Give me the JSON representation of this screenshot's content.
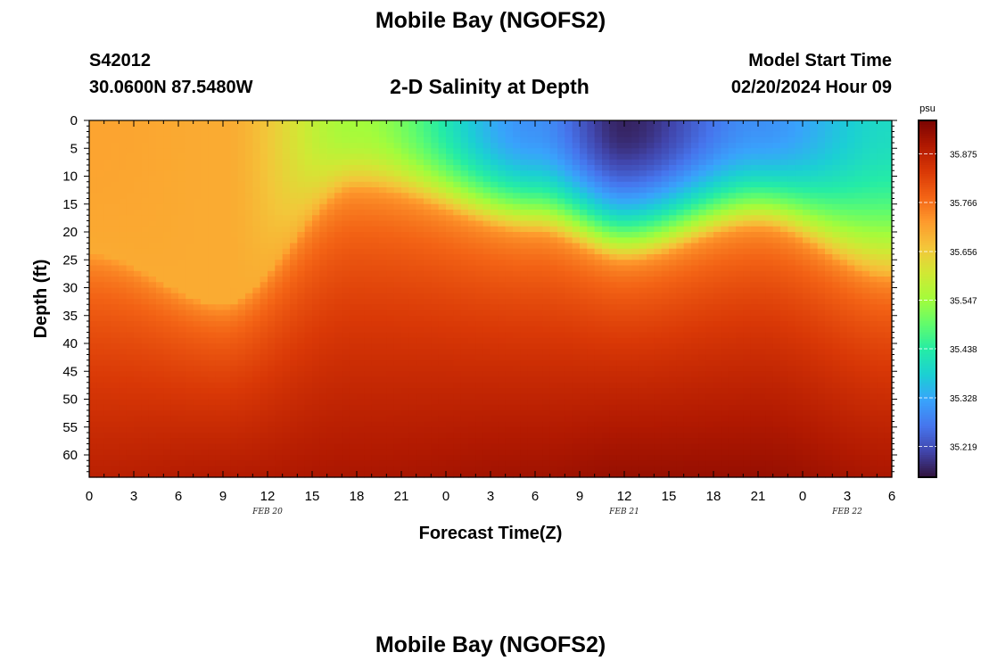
{
  "figure": {
    "title": "Mobile Bay (NGOFS2)",
    "station_id": "S42012",
    "coordinates": "30.0600N  87.5480W",
    "subtitle": "2-D Salinity at Depth",
    "model_start_label": "Model Start Time",
    "model_start_value": "02/20/2024 Hour 09",
    "repeated_title": "Mobile Bay (NGOFS2)"
  },
  "chart_data": {
    "type": "heatmap",
    "title": "2-D Salinity at Depth",
    "xlabel": "Forecast Time(Z)",
    "ylabel": "Depth (ft)",
    "x_range_hours": [
      0,
      54
    ],
    "x_tick_labels": [
      "0",
      "3",
      "6",
      "9",
      "12",
      "15",
      "18",
      "21",
      "0",
      "3",
      "6",
      "9",
      "12",
      "15",
      "18",
      "21",
      "0",
      "3",
      "6"
    ],
    "date_labels": [
      {
        "label": "FEB 20",
        "at_hour": 12
      },
      {
        "label": "FEB 21",
        "at_hour": 36
      },
      {
        "label": "FEB 22",
        "at_hour": 51
      }
    ],
    "y_range": [
      0,
      64
    ],
    "y_ticks": [
      0,
      5,
      10,
      15,
      20,
      25,
      30,
      35,
      40,
      45,
      50,
      55,
      60
    ],
    "y_inverted": true,
    "colorbar": {
      "unit": "psu",
      "min": 35.15,
      "max": 35.95,
      "tick_labels": [
        "35.875",
        "35.766",
        "35.656",
        "35.547",
        "35.438",
        "35.328",
        "35.219"
      ],
      "colormap": [
        "#30123b",
        "#4145ab",
        "#4675ed",
        "#39a2fc",
        "#1bcfd4",
        "#24eca6",
        "#61fc6c",
        "#a4fc3b",
        "#d1e834",
        "#f3c63a",
        "#fe9b2d",
        "#f36315",
        "#d93806",
        "#b11901",
        "#7a0402"
      ]
    },
    "profile_description": "low salinity (~35.15-35.5) near surface around hours 24-54, high salinity (~35.9) near bottom",
    "series": [
      {
        "hour": 0,
        "surface": 35.71,
        "halocline_depth_ft": 24,
        "bottom": 35.88
      },
      {
        "hour": 9,
        "surface": 35.7,
        "halocline_depth_ft": 33,
        "bottom": 35.89
      },
      {
        "hour": 18,
        "surface": 35.55,
        "halocline_depth_ft": 12,
        "bottom": 35.9
      },
      {
        "hour": 30,
        "surface": 35.3,
        "halocline_depth_ft": 20,
        "bottom": 35.91
      },
      {
        "hour": 36,
        "surface": 35.17,
        "halocline_depth_ft": 25,
        "bottom": 35.92
      },
      {
        "hour": 45,
        "surface": 35.3,
        "halocline_depth_ft": 19,
        "bottom": 35.92
      },
      {
        "hour": 54,
        "surface": 35.4,
        "halocline_depth_ft": 28,
        "bottom": 35.9
      }
    ]
  }
}
